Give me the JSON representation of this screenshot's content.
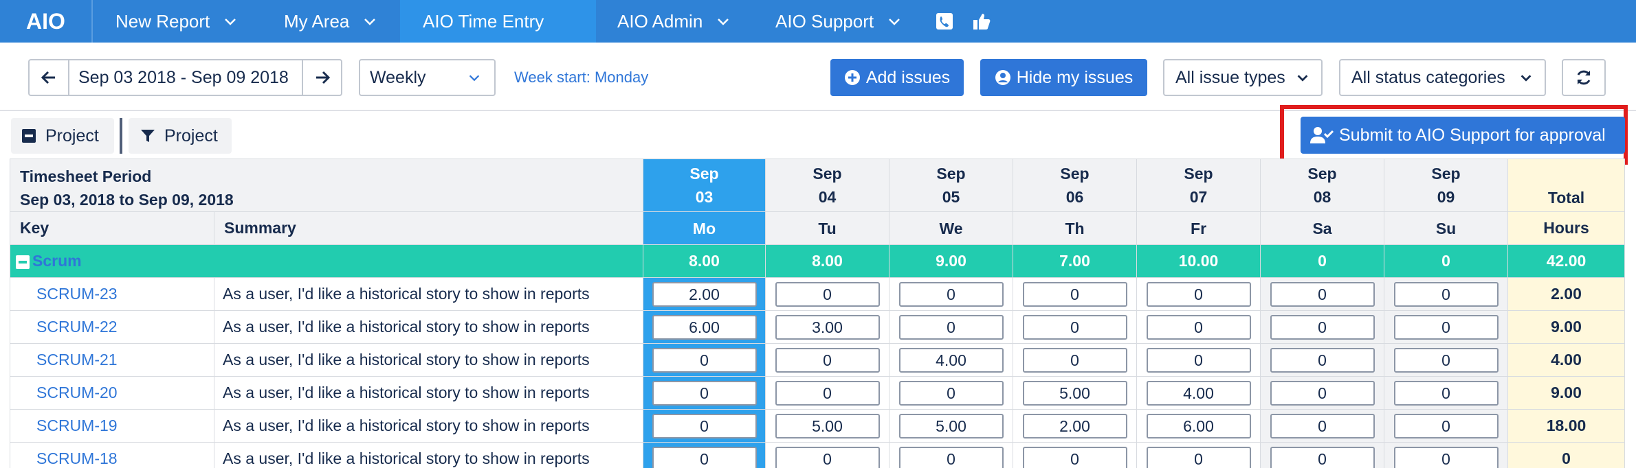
{
  "nav": {
    "logo": "AIO",
    "items": [
      {
        "label": "New Report"
      },
      {
        "label": "My Area"
      },
      {
        "label": "AIO Time Entry"
      },
      {
        "label": "AIO Admin"
      },
      {
        "label": "AIO Support"
      }
    ]
  },
  "toolbar": {
    "date_range": "Sep 03 2018 - Sep 09 2018",
    "period_select": "Weekly",
    "week_start": "Week start: Monday",
    "add_issues": "Add issues",
    "hide_my_issues": "Hide my issues",
    "issue_types": "All issue types",
    "status_categories": "All status categories"
  },
  "groupbar": {
    "group_by": "Project",
    "filter_by": "Project",
    "submit": "Submit to AIO Support for approval"
  },
  "table": {
    "period_title": "Timesheet Period",
    "period_range": "Sep 03, 2018 to Sep 09, 2018",
    "key_header": "Key",
    "summary_header": "Summary",
    "total_header": "Total",
    "hours_header": "Hours",
    "days": [
      {
        "month": "Sep",
        "date": "03",
        "dow": "Mo"
      },
      {
        "month": "Sep",
        "date": "04",
        "dow": "Tu"
      },
      {
        "month": "Sep",
        "date": "05",
        "dow": "We"
      },
      {
        "month": "Sep",
        "date": "06",
        "dow": "Th"
      },
      {
        "month": "Sep",
        "date": "07",
        "dow": "Fr"
      },
      {
        "month": "Sep",
        "date": "08",
        "dow": "Sa"
      },
      {
        "month": "Sep",
        "date": "09",
        "dow": "Su"
      }
    ],
    "group": {
      "name": "Scrum",
      "totals": [
        "8.00",
        "8.00",
        "9.00",
        "7.00",
        "10.00",
        "0",
        "0"
      ],
      "grand_total": "42.00"
    },
    "rows": [
      {
        "key": "SCRUM-23",
        "summary": "As a user, I'd like a historical story to show in reports",
        "values": [
          "2.00",
          "0",
          "0",
          "0",
          "0",
          "0",
          "0"
        ],
        "total": "2.00"
      },
      {
        "key": "SCRUM-22",
        "summary": "As a user, I'd like a historical story to show in reports",
        "values": [
          "6.00",
          "3.00",
          "0",
          "0",
          "0",
          "0",
          "0"
        ],
        "total": "9.00"
      },
      {
        "key": "SCRUM-21",
        "summary": "As a user, I'd like a historical story to show in reports",
        "values": [
          "0",
          "0",
          "4.00",
          "0",
          "0",
          "0",
          "0"
        ],
        "total": "4.00"
      },
      {
        "key": "SCRUM-20",
        "summary": "As a user, I'd like a historical story to show in reports",
        "values": [
          "0",
          "0",
          "0",
          "5.00",
          "4.00",
          "0",
          "0"
        ],
        "total": "9.00"
      },
      {
        "key": "SCRUM-19",
        "summary": "As a user, I'd like a historical story to show in reports",
        "values": [
          "0",
          "5.00",
          "5.00",
          "2.00",
          "6.00",
          "0",
          "0"
        ],
        "total": "18.00"
      },
      {
        "key": "SCRUM-18",
        "summary": "As a user, I'd like a historical story to show in reports",
        "values": [
          "0",
          "0",
          "0",
          "0",
          "0",
          "0",
          "0"
        ],
        "total": "0"
      }
    ]
  }
}
